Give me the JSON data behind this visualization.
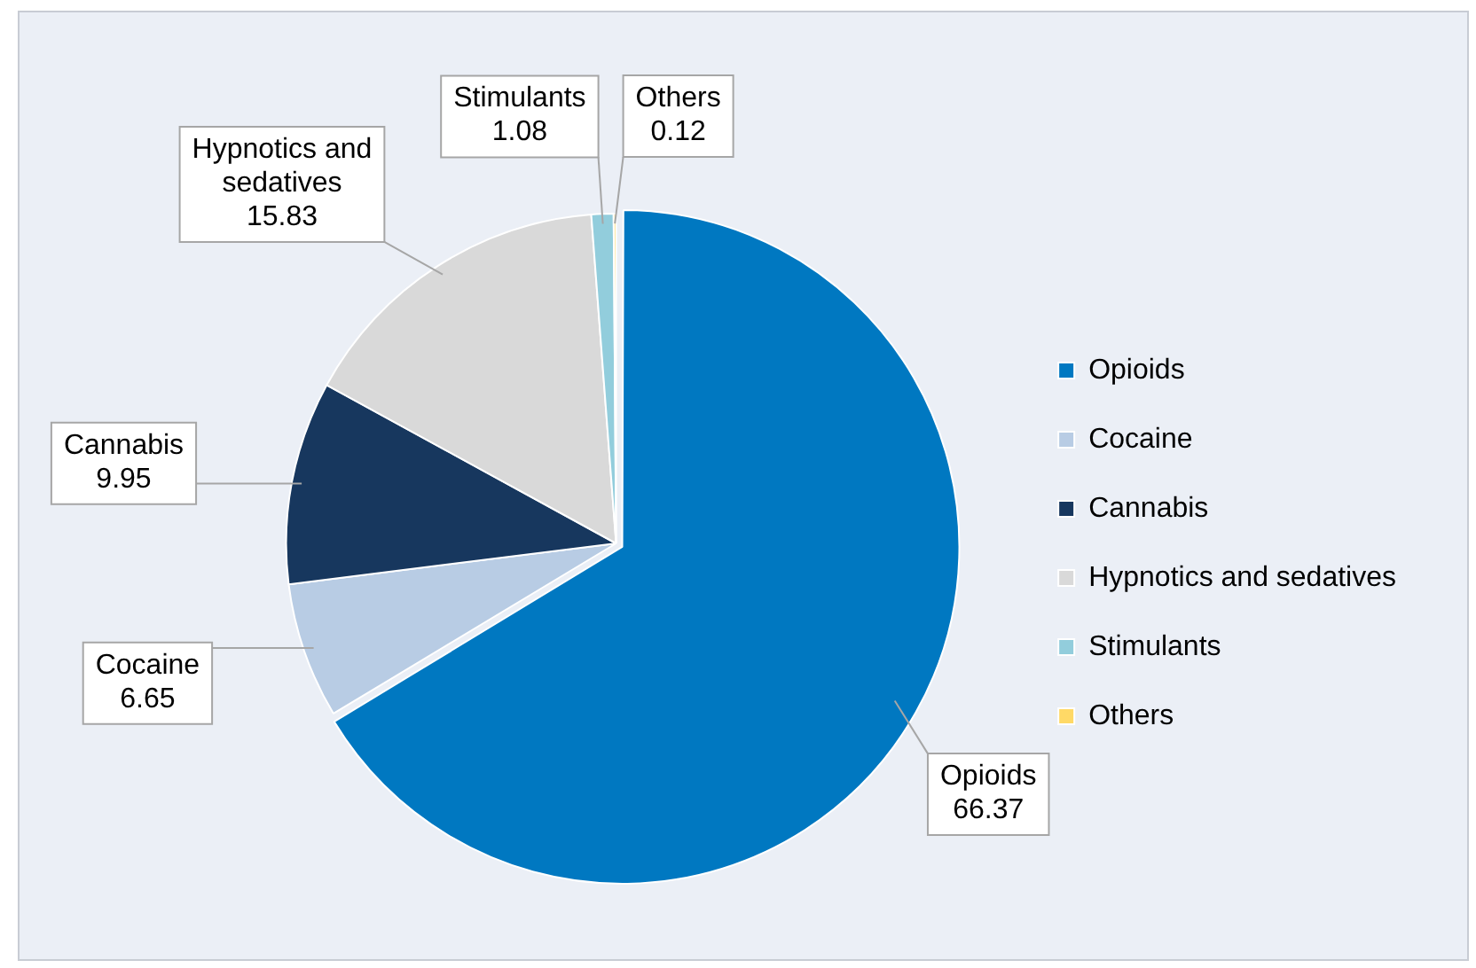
{
  "chart_data": {
    "type": "pie",
    "categories": [
      "Opioids",
      "Cocaine",
      "Cannabis",
      "Hypnotics and sedatives",
      "Stimulants",
      "Others"
    ],
    "values": [
      66.37,
      6.65,
      9.95,
      15.83,
      1.08,
      0.12
    ],
    "colors": [
      "#0078c1",
      "#b8cce4",
      "#17375e",
      "#d9d9d9",
      "#92cddc",
      "#ffd966"
    ],
    "data_labels": true,
    "legend": "right"
  }
}
